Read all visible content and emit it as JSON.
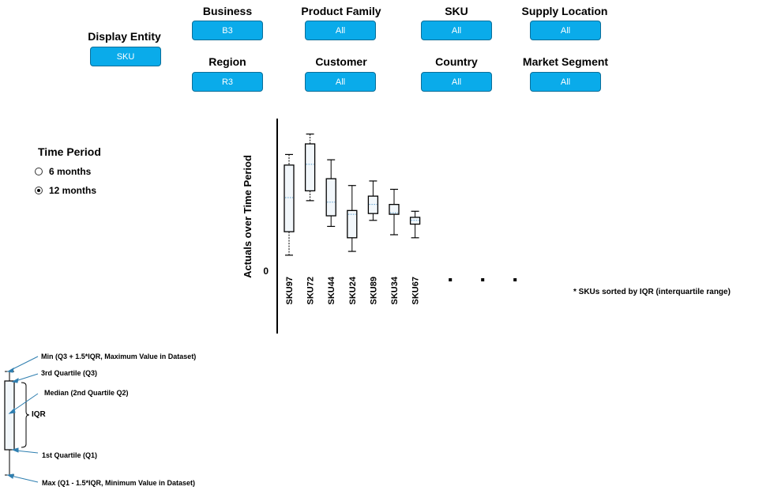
{
  "filters": {
    "display_entity": {
      "label": "Display Entity",
      "value": "SKU"
    },
    "business": {
      "label": "Business",
      "value": "B3"
    },
    "product_family": {
      "label": "Product Family",
      "value": "All"
    },
    "sku": {
      "label": "SKU",
      "value": "All"
    },
    "supply_location": {
      "label": "Supply Location",
      "value": "All"
    },
    "region": {
      "label": "Region",
      "value": "R3"
    },
    "customer": {
      "label": "Customer",
      "value": "All"
    },
    "country": {
      "label": "Country",
      "value": "All"
    },
    "market_segment": {
      "label": "Market Segment",
      "value": "All"
    }
  },
  "time_period": {
    "title": "Time Period",
    "options": [
      {
        "label": "6 months",
        "selected": false
      },
      {
        "label": "12 months",
        "selected": true
      }
    ]
  },
  "chart_data": {
    "type": "boxplot",
    "ylabel": "Actuals over Time Period",
    "ytick_labels": [
      "0"
    ],
    "ylim": [
      0,
      190
    ],
    "categories": [
      "SKU97",
      "SKU72",
      "SKU44",
      "SKU24",
      "SKU89",
      "SKU34",
      "SKU67"
    ],
    "series": [
      {
        "category": "SKU97",
        "min": 20,
        "q1": 51,
        "median": 96,
        "q3": 139,
        "max": 153
      },
      {
        "category": "SKU72",
        "min": 92,
        "q1": 105,
        "median": 140,
        "q3": 167,
        "max": 180
      },
      {
        "category": "SKU44",
        "min": 58,
        "q1": 72,
        "median": 90,
        "q3": 121,
        "max": 146
      },
      {
        "category": "SKU24",
        "min": 25,
        "q1": 43,
        "median": 74,
        "q3": 79,
        "max": 112
      },
      {
        "category": "SKU89",
        "min": 66,
        "q1": 75,
        "median": 87,
        "q3": 98,
        "max": 118
      },
      {
        "category": "SKU34",
        "min": 47,
        "q1": 74,
        "median": 76,
        "q3": 87,
        "max": 107
      },
      {
        "category": "SKU67",
        "min": 43,
        "q1": 61,
        "median": 66,
        "q3": 70,
        "max": 78
      }
    ],
    "placeholder_markers": 3,
    "note": "* SKUs sorted by IQR (interquartile range)"
  },
  "legend": {
    "max_note": "Min (Q3 + 1.5*IQR, Maximum  Value in Dataset)",
    "q3": "3rd Quartile (Q3)",
    "median": "Median  (2nd Quartile Q2)",
    "iqr": "IQR",
    "q1": "1st Quartile (Q1)",
    "min_note": "Max (Q1 - 1.5*IQR, Minimum  Value in Dataset)"
  }
}
